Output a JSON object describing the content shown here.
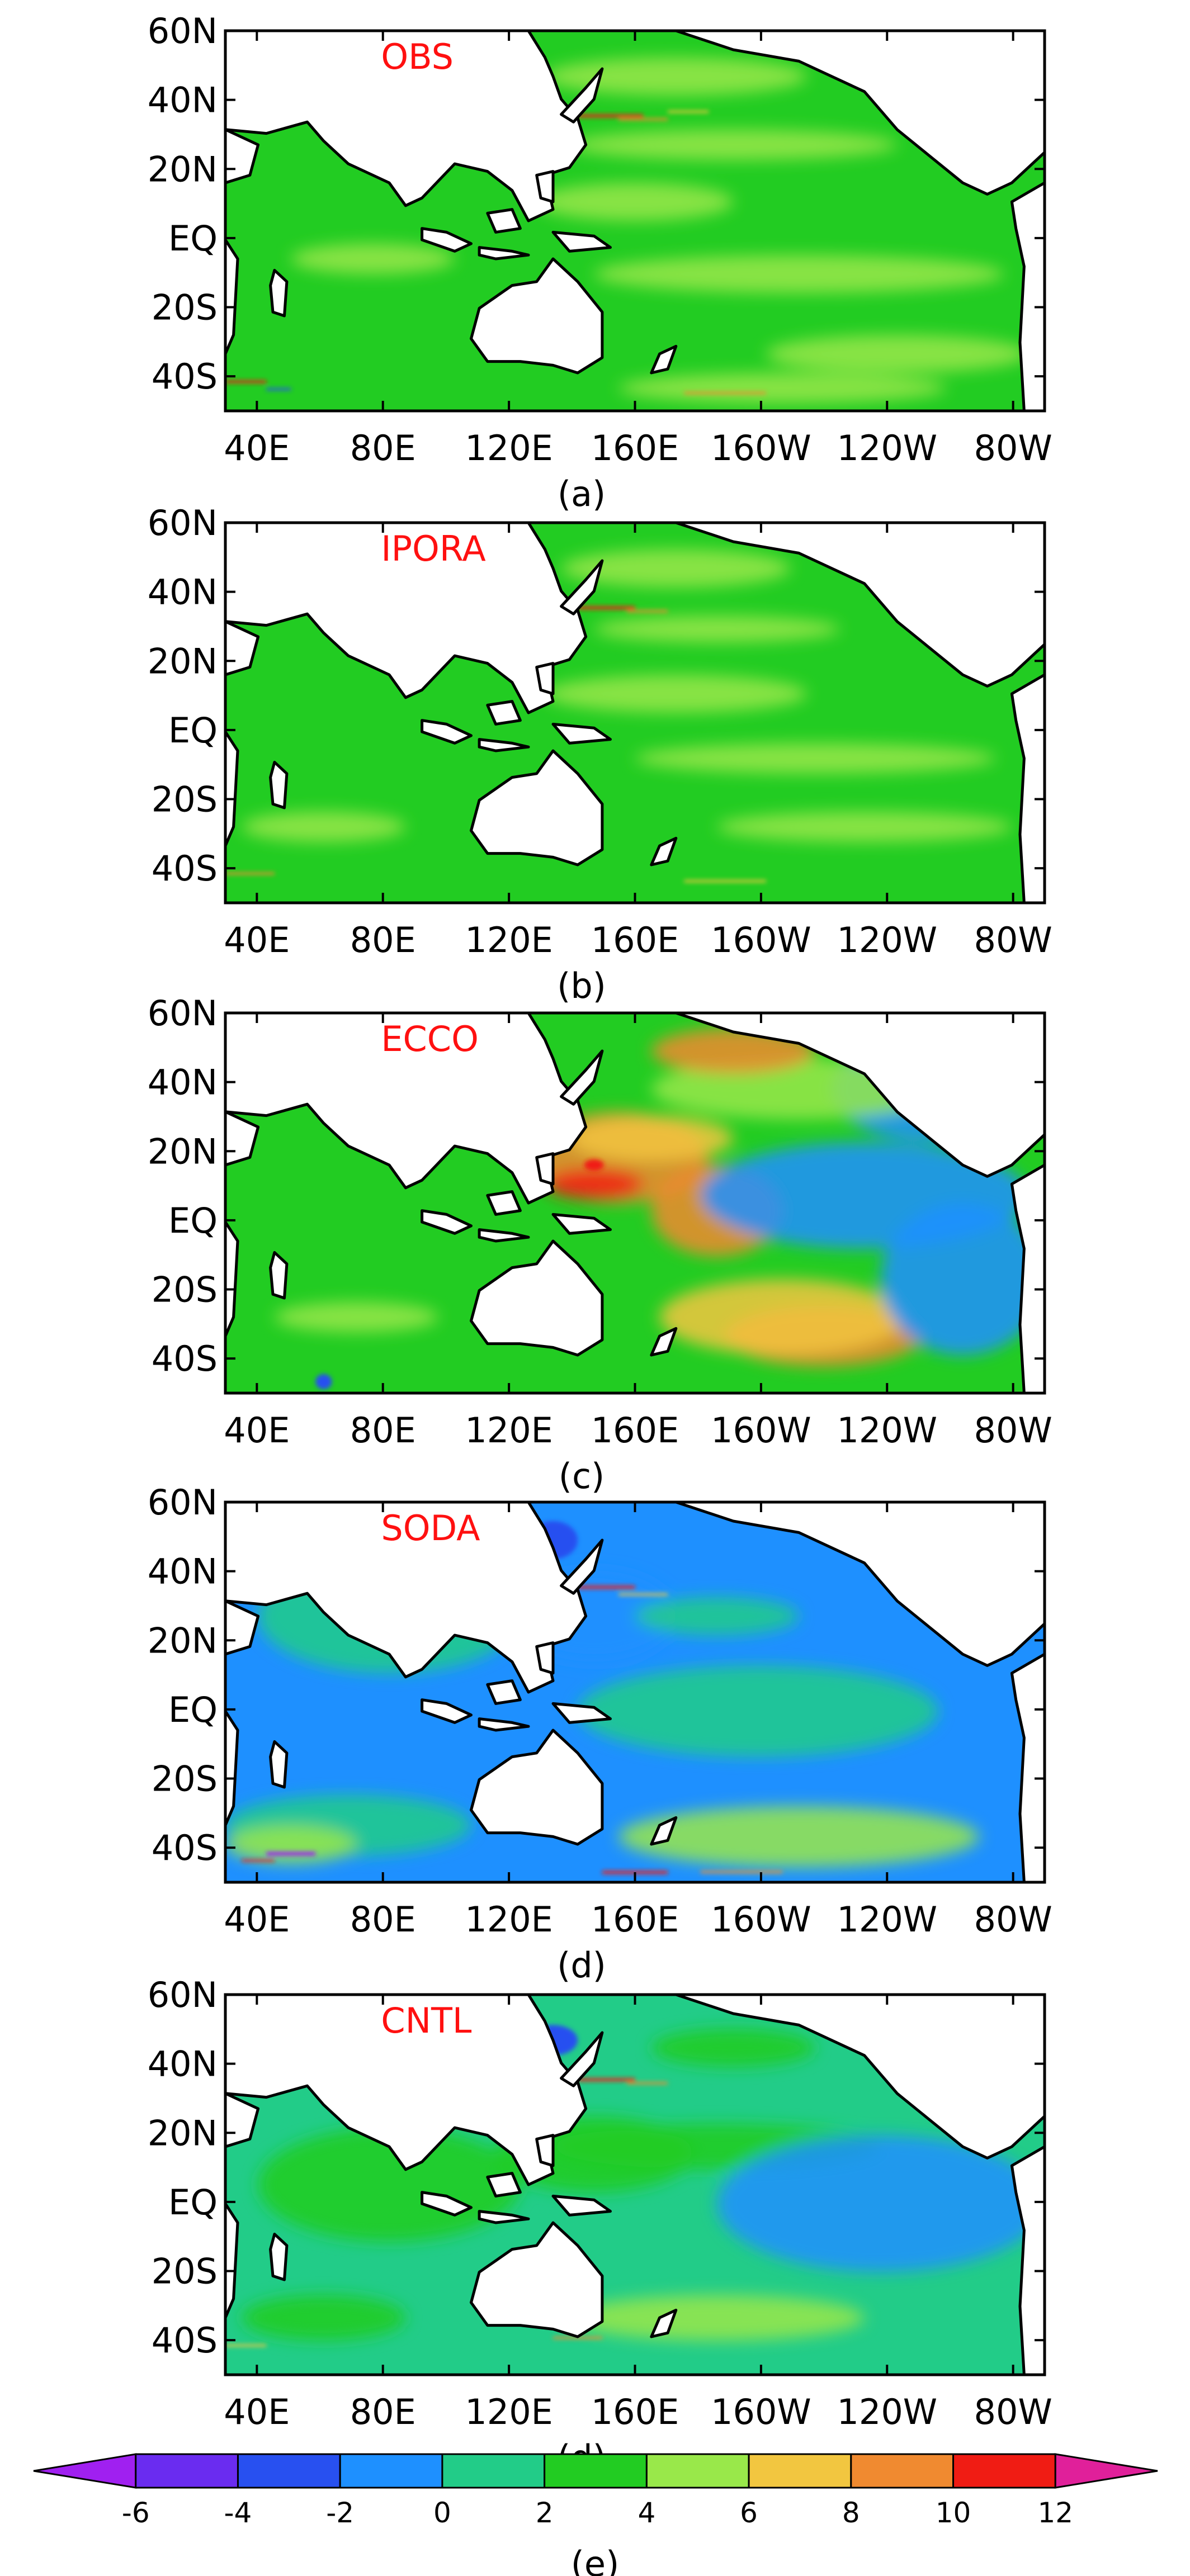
{
  "figure": {
    "panels": [
      {
        "id": "a",
        "title": "OBS",
        "subcaption": "(a)"
      },
      {
        "id": "b",
        "title": "IPORA",
        "subcaption": "(b)"
      },
      {
        "id": "c",
        "title": "ECCO",
        "subcaption": "(c)"
      },
      {
        "id": "d",
        "title": "SODA",
        "subcaption": "(d)"
      },
      {
        "id": "e",
        "title": "CNTL",
        "subcaption": "(d)"
      }
    ],
    "lat_ticks": [
      "60N",
      "40N",
      "20N",
      "EQ",
      "20S",
      "40S"
    ],
    "lon_ticks": [
      "40E",
      "80E",
      "120E",
      "160E",
      "160W",
      "120W",
      "80W"
    ],
    "colorbar": {
      "labels": [
        "-6",
        "-4",
        "-2",
        "0",
        "2",
        "4",
        "6",
        "8",
        "10",
        "12"
      ],
      "levels": [
        -6,
        -4,
        -2,
        0,
        2,
        4,
        6,
        8,
        10,
        12
      ],
      "colors": [
        "#a020f0",
        "#6a2cf0",
        "#2850f0",
        "#1e90ff",
        "#22cc88",
        "#22cc22",
        "#99e84a",
        "#f2c640",
        "#f08a30",
        "#f01c14",
        "#e0209a"
      ],
      "caption": "(e)"
    }
  },
  "map_extent": {
    "lon": [
      30,
      290
    ],
    "lat": [
      -50,
      60
    ]
  },
  "land_color": "#ffffff",
  "coast_color": "#000000"
}
